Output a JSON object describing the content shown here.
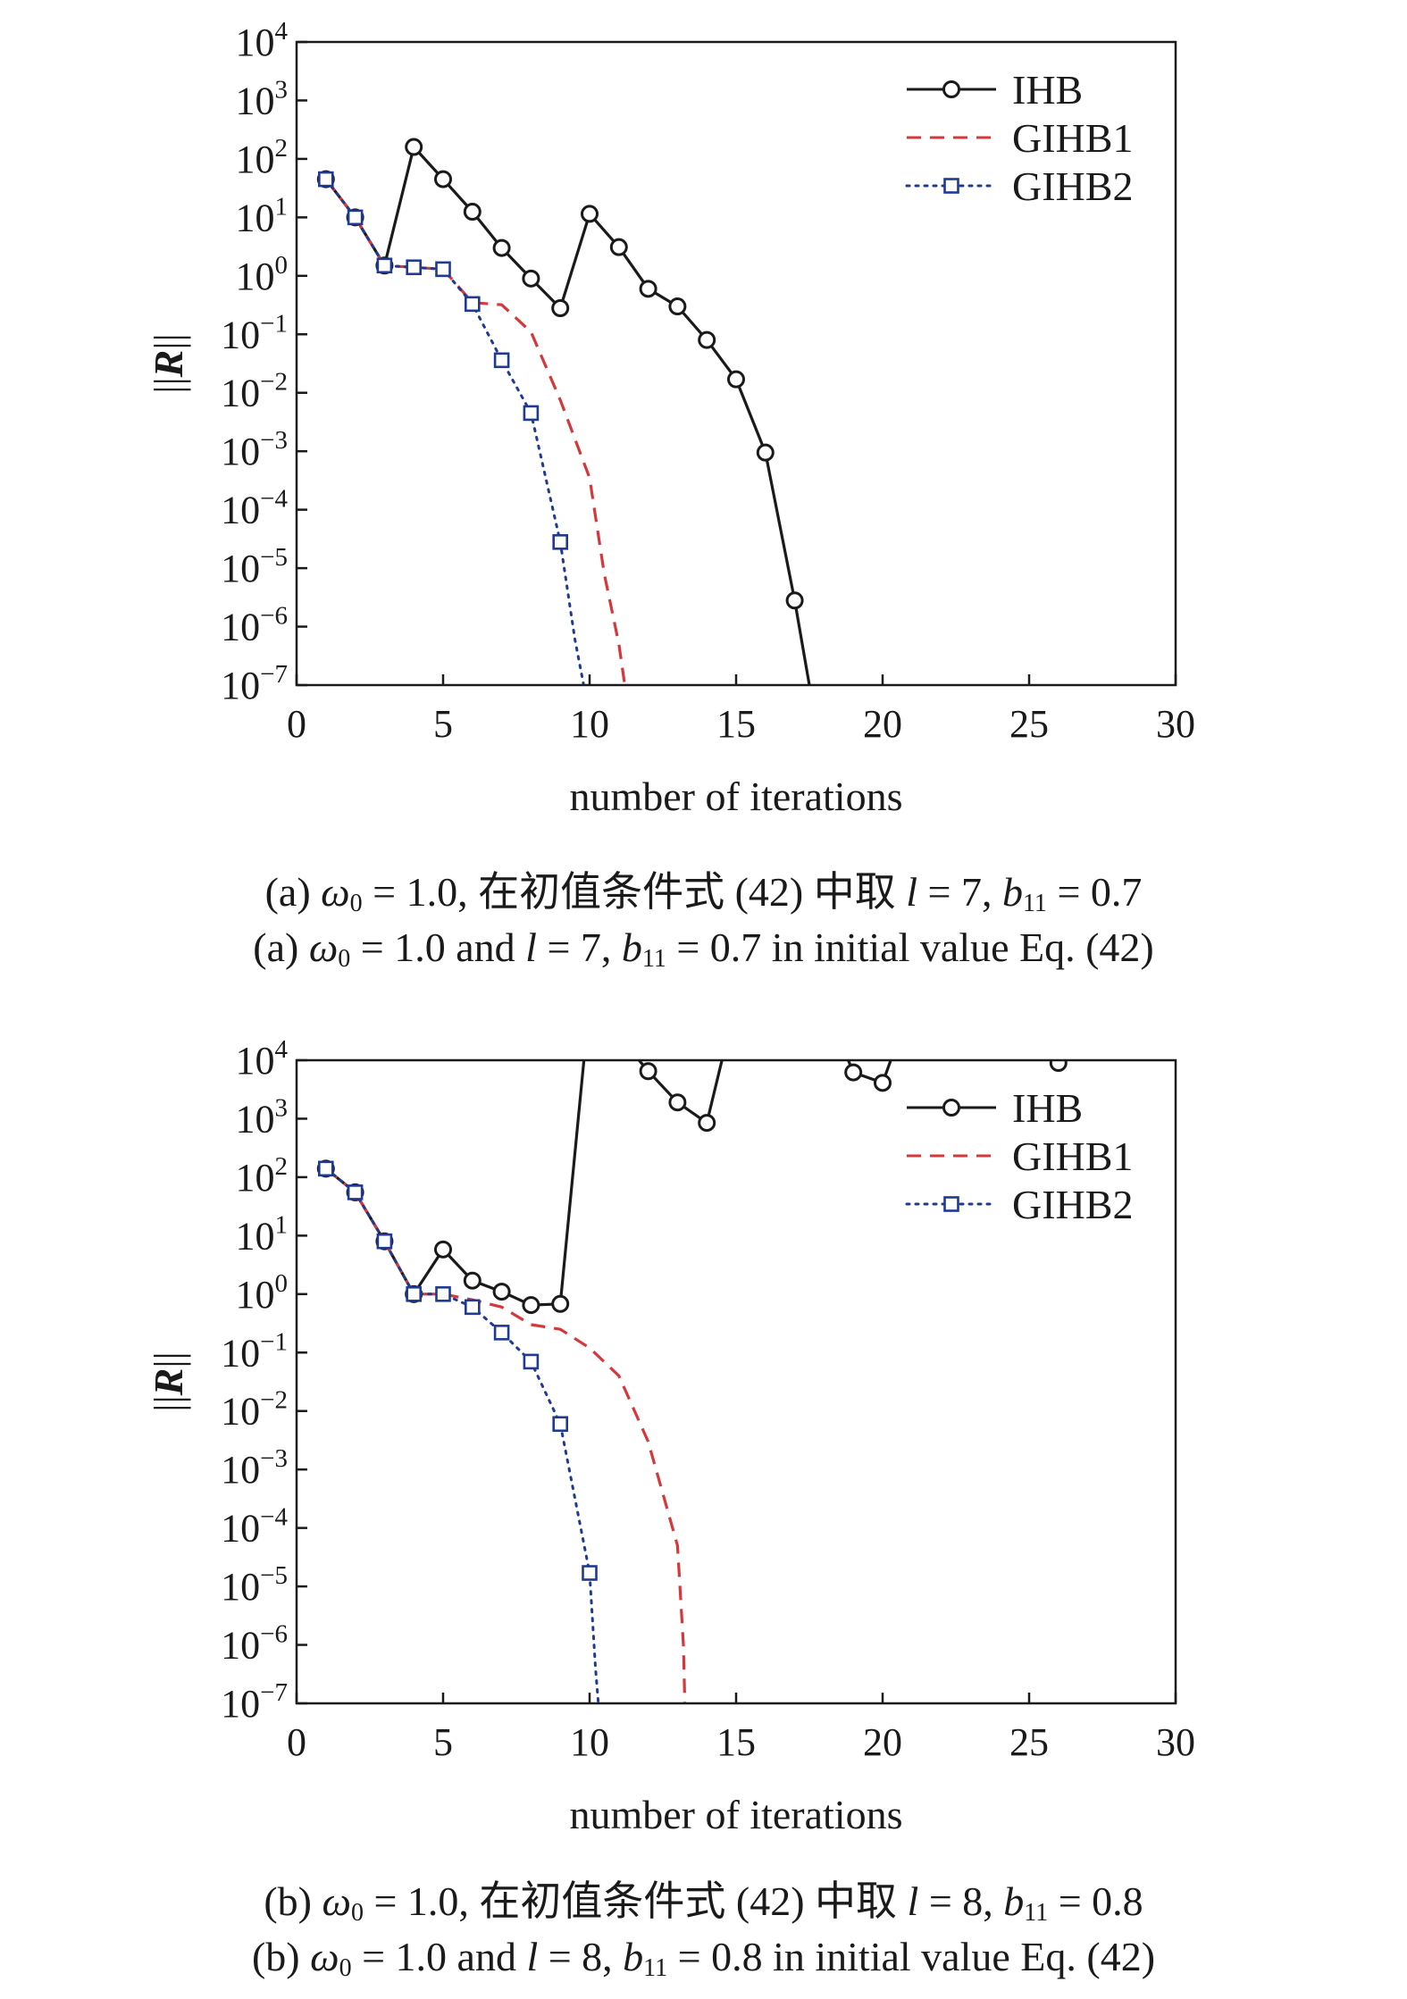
{
  "chart_data": [
    {
      "type": "line",
      "xlabel": "number of iterations",
      "ylabel": "||R||",
      "xlim": [
        0,
        30
      ],
      "ylim": [
        1e-07,
        10000.0
      ],
      "y_scale": "log",
      "x_ticks": [
        0,
        5,
        10,
        15,
        20,
        25,
        30
      ],
      "y_tick_exponents": [
        4,
        3,
        2,
        1,
        0,
        -1,
        -2,
        -3,
        -4,
        -5,
        -6,
        -7
      ],
      "legend_position": "top-right",
      "series": [
        {
          "name": "IHB",
          "color": "#1a1a1a",
          "line_style": "solid",
          "marker": "circle",
          "points": [
            [
              1,
              45
            ],
            [
              2,
              10
            ],
            [
              3,
              1.5
            ],
            [
              4,
              160
            ],
            [
              5,
              45
            ],
            [
              6,
              12.5
            ],
            [
              7,
              3
            ],
            [
              8,
              0.9
            ],
            [
              9,
              0.28
            ],
            [
              10,
              11.5
            ],
            [
              11,
              3.1
            ],
            [
              12,
              0.6
            ],
            [
              13,
              0.3
            ],
            [
              14,
              0.08
            ],
            [
              15,
              0.017
            ],
            [
              16,
              0.00095
            ],
            [
              17,
              2.8e-06
            ],
            [
              17.5,
              1e-07
            ]
          ]
        },
        {
          "name": "GIHB1",
          "color": "#d6373b",
          "line_style": "dashed",
          "marker": "none",
          "points": [
            [
              1,
              45
            ],
            [
              2,
              10
            ],
            [
              3,
              1.5
            ],
            [
              4,
              1.4
            ],
            [
              5,
              1.3
            ],
            [
              6,
              0.35
            ],
            [
              7,
              0.32
            ],
            [
              8,
              0.11
            ],
            [
              9,
              0.0075
            ],
            [
              10,
              0.00035
            ],
            [
              10.5,
              8e-06
            ],
            [
              11,
              5e-07
            ],
            [
              11.2,
              1e-07
            ]
          ]
        },
        {
          "name": "GIHB2",
          "color": "#1f3a93",
          "line_style": "dotted",
          "marker": "square",
          "points": [
            [
              1,
              45
            ],
            [
              2,
              10
            ],
            [
              3,
              1.5
            ],
            [
              4,
              1.4
            ],
            [
              5,
              1.3
            ],
            [
              6,
              0.33
            ],
            [
              7,
              0.036
            ],
            [
              8,
              0.0045
            ],
            [
              9,
              2.8e-05
            ],
            [
              9.5,
              6e-07
            ],
            [
              9.8,
              1e-07
            ]
          ]
        }
      ]
    },
    {
      "type": "line",
      "xlabel": "number of iterations",
      "ylabel": "||R||",
      "xlim": [
        0,
        30
      ],
      "ylim": [
        1e-07,
        10000.0
      ],
      "y_scale": "log",
      "x_ticks": [
        0,
        5,
        10,
        15,
        20,
        25,
        30
      ],
      "y_tick_exponents": [
        4,
        3,
        2,
        1,
        0,
        -1,
        -2,
        -3,
        -4,
        -5,
        -6,
        -7
      ],
      "legend_position": "top-right",
      "series": [
        {
          "name": "IHB",
          "color": "#1a1a1a",
          "line_style": "solid",
          "marker": "circle",
          "points": [
            [
              1,
              140
            ],
            [
              2,
              55
            ],
            [
              3,
              8
            ],
            [
              4,
              1.0
            ],
            [
              5,
              5.8
            ],
            [
              6,
              1.7
            ],
            [
              7,
              1.1
            ],
            [
              8,
              0.65
            ],
            [
              9,
              0.68
            ],
            [
              10,
              100000
            ],
            [
              12,
              6500
            ],
            [
              13,
              1900
            ],
            [
              14,
              850
            ],
            [
              15,
              100000
            ],
            [
              18,
              100000
            ],
            [
              19,
              6200
            ],
            [
              20,
              4100
            ],
            [
              21,
              100000
            ],
            [
              25,
              100000
            ],
            [
              26,
              9000
            ],
            [
              27,
              100000
            ]
          ]
        },
        {
          "name": "GIHB1",
          "color": "#d6373b",
          "line_style": "dashed",
          "marker": "none",
          "points": [
            [
              1,
              140
            ],
            [
              2,
              55
            ],
            [
              3,
              8
            ],
            [
              4,
              1.0
            ],
            [
              5,
              1.0
            ],
            [
              6,
              0.8
            ],
            [
              7,
              0.6
            ],
            [
              8,
              0.3
            ],
            [
              9,
              0.25
            ],
            [
              10,
              0.12
            ],
            [
              11,
              0.04
            ],
            [
              12,
              0.003
            ],
            [
              13,
              5e-05
            ],
            [
              13.2,
              1e-06
            ],
            [
              13.25,
              1e-07
            ]
          ]
        },
        {
          "name": "GIHB2",
          "color": "#1f3a93",
          "line_style": "dotted",
          "marker": "square",
          "points": [
            [
              1,
              140
            ],
            [
              2,
              55
            ],
            [
              3,
              8
            ],
            [
              4,
              1.0
            ],
            [
              5,
              1.0
            ],
            [
              6,
              0.6
            ],
            [
              7,
              0.22
            ],
            [
              8,
              0.07
            ],
            [
              9,
              0.006
            ],
            [
              10,
              1.7e-05
            ],
            [
              10.2,
              4e-07
            ],
            [
              10.3,
              1e-07
            ]
          ]
        }
      ]
    }
  ],
  "captions": {
    "a": {
      "zh": {
        "p1": "(a) ",
        "omega": "ω",
        "sub0": "0",
        "p2": " = 1.0, 在初值条件式  (42) 中取  ",
        "l": "l",
        "p3": " = 7, ",
        "b": "b",
        "sub11": "11",
        "p4": " = 0.7"
      },
      "en": {
        "p1": "(a) ",
        "omega": "ω",
        "sub0": "0",
        "p2": " = 1.0 and ",
        "l": "l",
        "p3": " = 7, ",
        "b": "b",
        "sub11": "11",
        "p4": " = 0.7 in initial value Eq. (42)"
      }
    },
    "b": {
      "zh": {
        "p1": "(b) ",
        "omega": "ω",
        "sub0": "0",
        "p2": " = 1.0, 在初值条件式  (42) 中取  ",
        "l": "l",
        "p3": " = 8, ",
        "b": "b",
        "sub11": "11",
        "p4": " = 0.8"
      },
      "en": {
        "p1": "(b) ",
        "omega": "ω",
        "sub0": "0",
        "p2": " = 1.0 and ",
        "l": "l",
        "p3": " = 8, ",
        "b": "b",
        "sub11": "11",
        "p4": " = 0.8 in initial value Eq. (42)"
      }
    }
  }
}
